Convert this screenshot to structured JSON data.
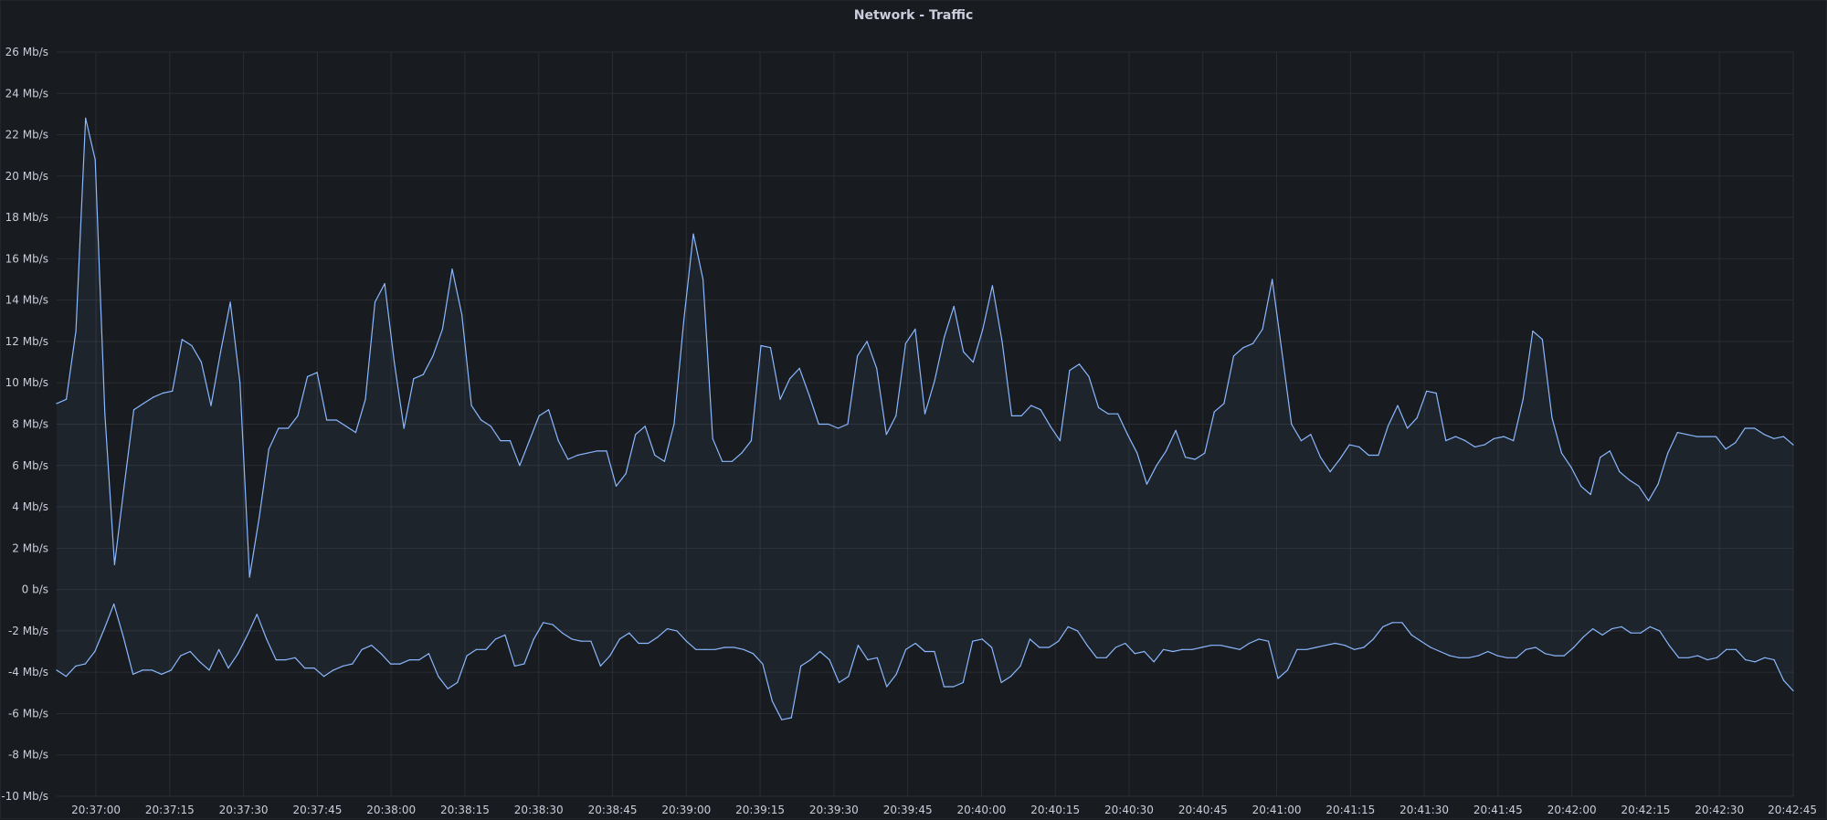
{
  "panel": {
    "title": "Network - Traffic"
  },
  "colors": {
    "background": "#181b1f",
    "grid": "#2a2d33",
    "series": "#8ab8ff",
    "fill": "rgba(138,184,255,0.06)"
  },
  "chart_data": {
    "type": "line",
    "title": "Network - Traffic",
    "xlabel": "",
    "ylabel": "",
    "unit": "Mb/s",
    "x_range": [
      "20:36:52",
      "20:42:45"
    ],
    "ylim": [
      -10,
      26
    ],
    "grid": true,
    "y_ticks": [
      {
        "value": 26,
        "label": "26 Mb/s"
      },
      {
        "value": 24,
        "label": "24 Mb/s"
      },
      {
        "value": 22,
        "label": "22 Mb/s"
      },
      {
        "value": 20,
        "label": "20 Mb/s"
      },
      {
        "value": 18,
        "label": "18 Mb/s"
      },
      {
        "value": 16,
        "label": "16 Mb/s"
      },
      {
        "value": 14,
        "label": "14 Mb/s"
      },
      {
        "value": 12,
        "label": "12 Mb/s"
      },
      {
        "value": 10,
        "label": "10 Mb/s"
      },
      {
        "value": 8,
        "label": "8 Mb/s"
      },
      {
        "value": 6,
        "label": "6 Mb/s"
      },
      {
        "value": 4,
        "label": "4 Mb/s"
      },
      {
        "value": 2,
        "label": "2 Mb/s"
      },
      {
        "value": 0,
        "label": "0 b/s"
      },
      {
        "value": -2,
        "label": "-2 Mb/s"
      },
      {
        "value": -4,
        "label": "-4 Mb/s"
      },
      {
        "value": -6,
        "label": "-6 Mb/s"
      },
      {
        "value": -8,
        "label": "-8 Mb/s"
      },
      {
        "value": -10,
        "label": "-10 Mb/s"
      }
    ],
    "x_ticks": [
      "20:37:00",
      "20:37:15",
      "20:37:30",
      "20:37:45",
      "20:38:00",
      "20:38:15",
      "20:38:30",
      "20:38:45",
      "20:39:00",
      "20:39:15",
      "20:39:30",
      "20:39:45",
      "20:40:00",
      "20:40:15",
      "20:40:30",
      "20:40:45",
      "20:41:00",
      "20:41:15",
      "20:41:30",
      "20:41:45",
      "20:42:00",
      "20:42:15",
      "20:42:30",
      "20:42:45"
    ],
    "sample_interval_s": 2,
    "series": [
      {
        "values": [
          9.0,
          9.2,
          12.5,
          22.8,
          20.8,
          8.5,
          1.2,
          5.0,
          8.7,
          9.0,
          9.3,
          9.5,
          9.6,
          12.1,
          11.8,
          11.0,
          8.9,
          11.5,
          13.9,
          10.0,
          0.6,
          3.5,
          6.8,
          7.8,
          7.8,
          8.4,
          10.3,
          10.5,
          8.2,
          8.2,
          7.9,
          7.6,
          9.2,
          13.9,
          14.8,
          11.0,
          7.8,
          10.2,
          10.4,
          11.3,
          12.6,
          15.5,
          13.3,
          8.9,
          8.2,
          7.9,
          7.2,
          7.2,
          6.0,
          7.2,
          8.4,
          8.7,
          7.2,
          6.3,
          6.5,
          6.6,
          6.7,
          6.7,
          5.0,
          5.6,
          7.5,
          7.9,
          6.5,
          6.2,
          8.0,
          13.0,
          17.2,
          15.0,
          7.3,
          6.2,
          6.2,
          6.6,
          7.2,
          11.8,
          11.7,
          9.2,
          10.2,
          10.7,
          9.4,
          8.0,
          8.0,
          7.8,
          8.0,
          11.3,
          12.0,
          10.7,
          7.5,
          8.4,
          11.9,
          12.6,
          8.5,
          10.1,
          12.2,
          13.7,
          11.5,
          11.0,
          12.6,
          14.7,
          12.0,
          8.4,
          8.4,
          8.9,
          8.7,
          7.9,
          7.2,
          10.6,
          10.9,
          10.3,
          8.8,
          8.5,
          8.5,
          7.5,
          6.6,
          5.1,
          6.0,
          6.7,
          7.7,
          6.4,
          6.3,
          6.6,
          8.6,
          9.0,
          11.3,
          11.7,
          11.9,
          12.6,
          15.0,
          11.5,
          8.0,
          7.2,
          7.5,
          6.4,
          5.7,
          6.3,
          7.0,
          6.9,
          6.5,
          6.5,
          7.9,
          8.9,
          7.8,
          8.3,
          9.6,
          9.5,
          7.2,
          7.4,
          7.2,
          6.9,
          7.0,
          7.3,
          7.4,
          7.2,
          9.2,
          12.5,
          12.1,
          8.3,
          6.6,
          5.9,
          5.0,
          4.6,
          6.4,
          6.7,
          5.7,
          5.3,
          5.0,
          4.3,
          5.1,
          6.6,
          7.6,
          7.5,
          7.4,
          7.4,
          7.4,
          6.8,
          7.1,
          7.8,
          7.8,
          7.5,
          7.3,
          7.4,
          7.0
        ]
      },
      {
        "values": [
          -3.9,
          -4.2,
          -3.7,
          -3.6,
          -3.0,
          -1.9,
          -0.7,
          -2.3,
          -4.1,
          -3.9,
          -3.9,
          -4.1,
          -3.9,
          -3.2,
          -3.0,
          -3.5,
          -3.9,
          -2.9,
          -3.8,
          -3.1,
          -2.2,
          -1.2,
          -2.4,
          -3.4,
          -3.4,
          -3.3,
          -3.8,
          -3.8,
          -4.2,
          -3.9,
          -3.7,
          -3.6,
          -2.9,
          -2.7,
          -3.1,
          -3.6,
          -3.6,
          -3.4,
          -3.4,
          -3.1,
          -4.2,
          -4.8,
          -4.5,
          -3.2,
          -2.9,
          -2.9,
          -2.4,
          -2.2,
          -3.7,
          -3.6,
          -2.4,
          -1.6,
          -1.7,
          -2.1,
          -2.4,
          -2.5,
          -2.5,
          -3.7,
          -3.2,
          -2.4,
          -2.1,
          -2.6,
          -2.6,
          -2.3,
          -1.9,
          -2.0,
          -2.5,
          -2.9,
          -2.9,
          -2.9,
          -2.8,
          -2.8,
          -2.9,
          -3.1,
          -3.6,
          -5.4,
          -6.3,
          -6.2,
          -3.7,
          -3.4,
          -3.0,
          -3.4,
          -4.5,
          -4.2,
          -2.7,
          -3.4,
          -3.3,
          -4.7,
          -4.1,
          -2.9,
          -2.6,
          -3.0,
          -3.0,
          -4.7,
          -4.7,
          -4.5,
          -2.5,
          -2.4,
          -2.8,
          -4.5,
          -4.2,
          -3.7,
          -2.4,
          -2.8,
          -2.8,
          -2.5,
          -1.8,
          -2.0,
          -2.7,
          -3.3,
          -3.3,
          -2.8,
          -2.6,
          -3.1,
          -3.0,
          -3.5,
          -2.9,
          -3.0,
          -2.9,
          -2.9,
          -2.8,
          -2.7,
          -2.7,
          -2.8,
          -2.9,
          -2.6,
          -2.4,
          -2.5,
          -4.3,
          -3.9,
          -2.9,
          -2.9,
          -2.8,
          -2.7,
          -2.6,
          -2.7,
          -2.9,
          -2.8,
          -2.4,
          -1.8,
          -1.6,
          -1.6,
          -2.2,
          -2.5,
          -2.8,
          -3.0,
          -3.2,
          -3.3,
          -3.3,
          -3.2,
          -3.0,
          -3.2,
          -3.3,
          -3.3,
          -2.9,
          -2.8,
          -3.1,
          -3.2,
          -3.2,
          -2.8,
          -2.3,
          -1.9,
          -2.2,
          -1.9,
          -1.8,
          -2.1,
          -2.1,
          -1.8,
          -2.0,
          -2.7,
          -3.3,
          -3.3,
          -3.2,
          -3.4,
          -3.3,
          -2.9,
          -2.9,
          -3.4,
          -3.5,
          -3.3,
          -3.4,
          -4.4,
          -4.9
        ]
      }
    ]
  }
}
